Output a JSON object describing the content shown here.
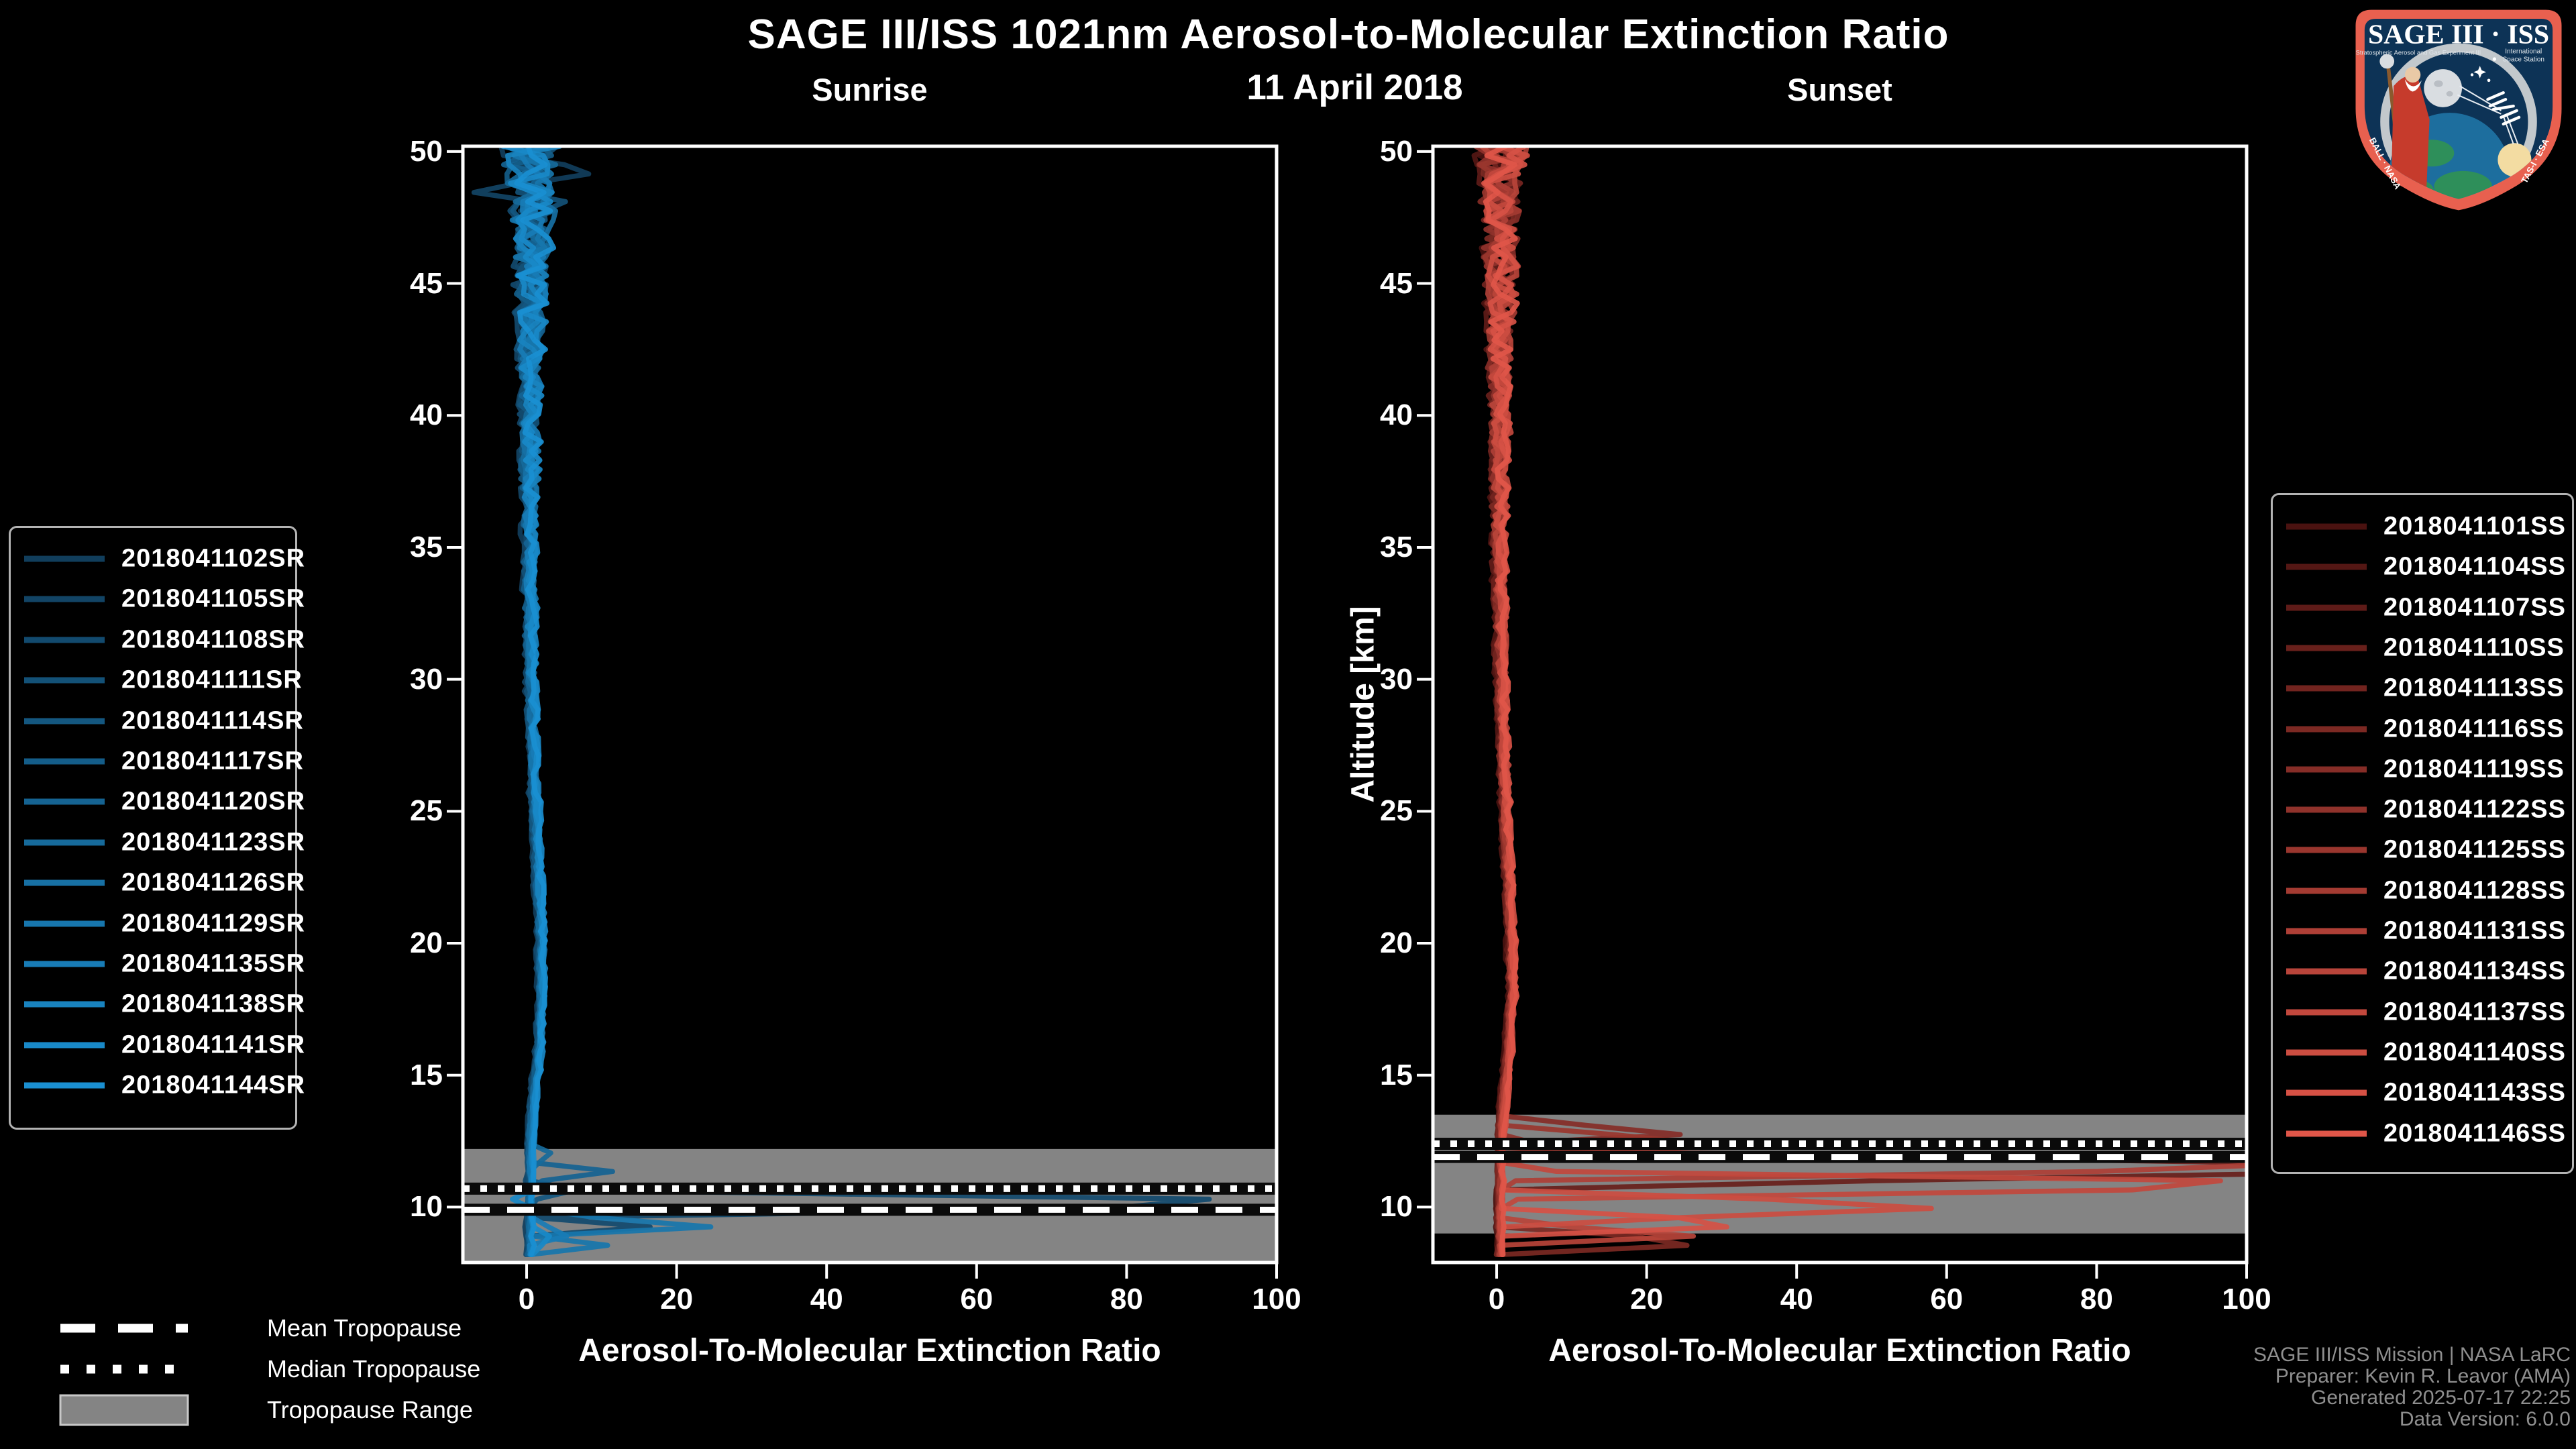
{
  "header": {
    "title": "SAGE III/ISS 1021nm Aerosol-to-Molecular Extinction Ratio",
    "date": "11 April 2018"
  },
  "chart_data": {
    "type": "line",
    "panels": [
      {
        "id": "sunrise",
        "title": "Sunrise",
        "xlabel": "Aerosol-To-Molecular Extinction Ratio",
        "ylabel": "Altitude [km]",
        "xlim": [
          -8.5,
          100
        ],
        "ylim": [
          7.9,
          50.2
        ],
        "xticks": [
          0,
          20,
          40,
          60,
          80,
          100
        ],
        "yticks": [
          10,
          15,
          20,
          25,
          30,
          35,
          40,
          45,
          50
        ],
        "grid": false,
        "legend_position": "left",
        "tropopause": {
          "mean_km": 9.9,
          "median_km": 10.7,
          "range_km": [
            7.9,
            12.2
          ]
        },
        "baseline_x_vs_alt": [
          [
            7.9,
            0.4
          ],
          [
            10,
            0.4
          ],
          [
            12,
            0.45
          ],
          [
            13,
            0.6
          ],
          [
            14,
            0.9
          ],
          [
            16,
            1.6
          ],
          [
            18,
            2.0
          ],
          [
            20,
            1.9
          ],
          [
            22,
            1.6
          ],
          [
            24,
            1.3
          ],
          [
            26,
            1.0
          ],
          [
            28,
            0.8
          ],
          [
            31,
            0.5
          ],
          [
            34,
            0.4
          ],
          [
            37,
            0.35
          ],
          [
            40,
            0.5
          ],
          [
            42,
            0.4
          ],
          [
            45,
            0.6
          ],
          [
            48,
            0.7
          ],
          [
            50.2,
            0.6
          ]
        ],
        "noise_amp_vs_alt": [
          [
            7.9,
            0.26
          ],
          [
            10,
            0.26
          ],
          [
            14,
            0.3
          ],
          [
            18,
            0.35
          ],
          [
            22,
            0.42
          ],
          [
            26,
            0.5
          ],
          [
            30,
            0.6
          ],
          [
            34,
            0.8
          ],
          [
            37,
            1.0
          ],
          [
            40,
            1.3
          ],
          [
            42,
            1.6
          ],
          [
            44,
            2.0
          ],
          [
            46,
            2.5
          ],
          [
            48,
            3.2
          ],
          [
            50.2,
            4.2
          ]
        ],
        "series": [
          {
            "name": "2018041102SR",
            "color": "#113E5C",
            "spikes": [
              [
                49.25,
                10.5,
                0.5
              ]
            ]
          },
          {
            "name": "2018041105SR",
            "color": "#124465",
            "spikes": [
              [
                48.55,
                -9.0,
                0.45
              ]
            ]
          },
          {
            "name": "2018041108SR",
            "color": "#124A6E",
            "spikes": [
              [
                10.15,
                110,
                0.55
              ],
              [
                9.3,
                17,
                0.35
              ]
            ]
          },
          {
            "name": "2018041111SR",
            "color": "#135177",
            "spikes": [
              [
                47.9,
                6,
                0.4
              ]
            ]
          },
          {
            "name": "2018041114SR",
            "color": "#145780",
            "spikes": [
              [
                10.55,
                7.5,
                0.35
              ]
            ]
          },
          {
            "name": "2018041117SR",
            "color": "#145D89",
            "spikes": []
          },
          {
            "name": "2018041120SR",
            "color": "#156392",
            "spikes": [
              [
                11.3,
                11.5,
                0.4
              ]
            ]
          },
          {
            "name": "2018041123SR",
            "color": "#166A9B",
            "spikes": [
              [
                11.9,
                5,
                0.3
              ]
            ]
          },
          {
            "name": "2018041126SR",
            "color": "#1770A4",
            "spikes": []
          },
          {
            "name": "2018041129SR",
            "color": "#1776AD",
            "spikes": [
              [
                9.35,
                28,
                0.4
              ],
              [
                8.6,
                11,
                0.3
              ]
            ]
          },
          {
            "name": "2018041135SR",
            "color": "#187CB6",
            "spikes": [
              [
                9.05,
                9,
                0.3
              ]
            ]
          },
          {
            "name": "2018041138SR",
            "color": "#1983BF",
            "spikes": []
          },
          {
            "name": "2018041141SR",
            "color": "#1989C8",
            "spikes": [
              [
                10.3,
                -2.8,
                0.3
              ],
              [
                8.75,
                5,
                0.3
              ]
            ]
          },
          {
            "name": "2018041144SR",
            "color": "#1A8FD1",
            "spikes": []
          }
        ]
      },
      {
        "id": "sunset",
        "title": "Sunset",
        "xlabel": "Aerosol-To-Molecular Extinction Ratio",
        "ylabel": "Altitude [km]",
        "xlim": [
          -8.5,
          100
        ],
        "ylim": [
          7.9,
          50.2
        ],
        "xticks": [
          0,
          20,
          40,
          60,
          80,
          100
        ],
        "yticks": [
          10,
          15,
          20,
          25,
          30,
          35,
          40,
          45,
          50
        ],
        "grid": false,
        "legend_position": "right",
        "tropopause": {
          "mean_km": 11.9,
          "median_km": 12.4,
          "range_km": [
            9.0,
            13.5
          ]
        },
        "baseline_x_vs_alt": [
          [
            7.9,
            0.4
          ],
          [
            10,
            0.4
          ],
          [
            12,
            0.45
          ],
          [
            13,
            0.6
          ],
          [
            14,
            0.9
          ],
          [
            16,
            1.6
          ],
          [
            18,
            2.0
          ],
          [
            20,
            1.9
          ],
          [
            22,
            1.6
          ],
          [
            24,
            1.3
          ],
          [
            26,
            1.0
          ],
          [
            28,
            0.8
          ],
          [
            31,
            0.5
          ],
          [
            34,
            0.4
          ],
          [
            37,
            0.35
          ],
          [
            40,
            0.5
          ],
          [
            42,
            0.4
          ],
          [
            45,
            0.6
          ],
          [
            48,
            0.7
          ],
          [
            50.2,
            0.6
          ]
        ],
        "noise_amp_vs_alt": [
          [
            7.9,
            0.26
          ],
          [
            10,
            0.28
          ],
          [
            14,
            0.3
          ],
          [
            18,
            0.35
          ],
          [
            22,
            0.42
          ],
          [
            26,
            0.5
          ],
          [
            30,
            0.6
          ],
          [
            34,
            0.8
          ],
          [
            37,
            1.0
          ],
          [
            40,
            1.3
          ],
          [
            42,
            1.6
          ],
          [
            44,
            1.9
          ],
          [
            46,
            2.3
          ],
          [
            48,
            2.8
          ],
          [
            50.2,
            3.4
          ]
        ],
        "series": [
          {
            "name": "2018041101SS",
            "color": "#4A1210",
            "spikes": []
          },
          {
            "name": "2018041104SS",
            "color": "#541714",
            "spikes": []
          },
          {
            "name": "2018041107SS",
            "color": "#5E1B18",
            "spikes": []
          },
          {
            "name": "2018041110SS",
            "color": "#68201B",
            "spikes": [
              [
                11.45,
                125,
                0.8
              ]
            ]
          },
          {
            "name": "2018041113SS",
            "color": "#72241F",
            "spikes": []
          },
          {
            "name": "2018041116SS",
            "color": "#7C2923",
            "spikes": [
              [
                8.7,
                36,
                0.4
              ]
            ]
          },
          {
            "name": "2018041119SS",
            "color": "#862D27",
            "spikes": [
              [
                12.85,
                27,
                0.45
              ]
            ]
          },
          {
            "name": "2018041122SS",
            "color": "#90322B",
            "spikes": [
              [
                12.2,
                12,
                0.35
              ]
            ]
          },
          {
            "name": "2018041125SS",
            "color": "#9A362E",
            "spikes": [
              [
                12.5,
                30,
                0.5
              ]
            ]
          },
          {
            "name": "2018041128SS",
            "color": "#A43B32",
            "spikes": []
          },
          {
            "name": "2018041131SS",
            "color": "#AE3F36",
            "spikes": [
              [
                11.6,
                118,
                0.65
              ]
            ]
          },
          {
            "name": "2018041134SS",
            "color": "#B8443A",
            "spikes": [
              [
                9.0,
                30,
                0.4
              ]
            ]
          },
          {
            "name": "2018041137SS",
            "color": "#C2483D",
            "spikes": [
              [
                10.85,
                112,
                0.6
              ]
            ]
          },
          {
            "name": "2018041140SS",
            "color": "#CC4D41",
            "spikes": [
              [
                10.05,
                62,
                0.55
              ],
              [
                9.55,
                20,
                0.3
              ]
            ]
          },
          {
            "name": "2018041143SS",
            "color": "#D65145",
            "spikes": [
              [
                9.4,
                40,
                0.45
              ]
            ]
          },
          {
            "name": "2018041146SS",
            "color": "#E05649",
            "spikes": []
          }
        ]
      }
    ]
  },
  "tropopause_legend": {
    "mean_label": "Mean Tropopause",
    "median_label": "Median Tropopause",
    "range_label": "Tropopause Range"
  },
  "attribution": {
    "line1": "SAGE III/ISS Mission | NASA LaRC",
    "line2": "Preparer: Kevin R. Leavor (AMA)",
    "line3": "Generated 2025-07-17 22:25",
    "line4": "Data Version: 6.0.0"
  },
  "logo": {
    "title": "SAGE III · ISS",
    "subtitle_left": "Stratospheric Aerosol and Gas Experiment III",
    "subtitle_right_1": "International",
    "subtitle_right_2": "Space Station",
    "ring_left": "BALL · NASA",
    "ring_right": "TAS-I · ESA"
  },
  "colors": {
    "background": "#000000",
    "axis": "#ffffff",
    "tropopause_band": "#848484",
    "tropopause_line_white": "#ffffff",
    "tropopause_line_dark": "#0a0a0a",
    "legend_border": "#b3b3b3",
    "attribution_text": "#8f8f8f",
    "logo_border": "#e8604f",
    "logo_field": "#0d3356"
  }
}
